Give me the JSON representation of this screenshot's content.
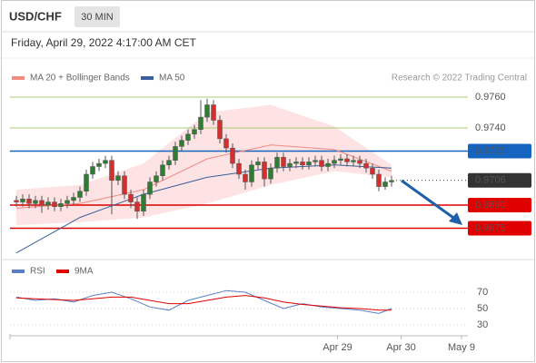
{
  "chart_data": [
    {
      "type": "candlestick",
      "title": "USD/CHF",
      "timeframe": "30 MIN",
      "subtitle": "Friday, April 29, 2022 4:17:00 AM CET",
      "source": "Research © 2022 Trading Central",
      "up_color": "#2e7d32",
      "down_color": "#d32f2f",
      "xlim": [
        -1,
        71
      ],
      "ylim": [
        0.9658,
        0.977
      ],
      "ohlc": [
        [
          0.9693,
          0.9696,
          0.9689,
          0.9692
        ],
        [
          0.9692,
          0.9697,
          0.9689,
          0.9694
        ],
        [
          0.9694,
          0.9697,
          0.9688,
          0.9691
        ],
        [
          0.9691,
          0.9696,
          0.9688,
          0.9693
        ],
        [
          0.9693,
          0.9696,
          0.9685,
          0.969
        ],
        [
          0.969,
          0.9695,
          0.9687,
          0.9692
        ],
        [
          0.9692,
          0.9695,
          0.9686,
          0.9689
        ],
        [
          0.9689,
          0.9694,
          0.9686,
          0.9691
        ],
        [
          0.9691,
          0.9696,
          0.9688,
          0.9693
        ],
        [
          0.9693,
          0.9698,
          0.969,
          0.9695
        ],
        [
          0.9695,
          0.9702,
          0.9692,
          0.9699
        ],
        [
          0.9699,
          0.9713,
          0.9696,
          0.971
        ],
        [
          0.971,
          0.9718,
          0.9707,
          0.9715
        ],
        [
          0.9715,
          0.972,
          0.9712,
          0.9717
        ],
        [
          0.9717,
          0.9722,
          0.9714,
          0.9719
        ],
        [
          0.9719,
          0.9722,
          0.9684,
          0.9706
        ],
        [
          0.9706,
          0.9712,
          0.9703,
          0.9709
        ],
        [
          0.9709,
          0.9712,
          0.9694,
          0.9697
        ],
        [
          0.9697,
          0.97,
          0.9688,
          0.9692
        ],
        [
          0.9692,
          0.9695,
          0.9681,
          0.9686
        ],
        [
          0.9686,
          0.97,
          0.9683,
          0.9697
        ],
        [
          0.9697,
          0.9708,
          0.9694,
          0.9705
        ],
        [
          0.9705,
          0.9712,
          0.9702,
          0.9709
        ],
        [
          0.9709,
          0.9719,
          0.9706,
          0.9716
        ],
        [
          0.9716,
          0.9722,
          0.9713,
          0.9719
        ],
        [
          0.9719,
          0.9731,
          0.9716,
          0.9728
        ],
        [
          0.9728,
          0.9735,
          0.9725,
          0.9732
        ],
        [
          0.9732,
          0.9739,
          0.9729,
          0.9736
        ],
        [
          0.9736,
          0.9742,
          0.9733,
          0.9739
        ],
        [
          0.9739,
          0.9758,
          0.9736,
          0.9747
        ],
        [
          0.9747,
          0.9759,
          0.9744,
          0.9755
        ],
        [
          0.9755,
          0.9758,
          0.9742,
          0.9745
        ],
        [
          0.9745,
          0.9748,
          0.973,
          0.9733
        ],
        [
          0.9733,
          0.9736,
          0.9724,
          0.9727
        ],
        [
          0.9727,
          0.973,
          0.9714,
          0.9717
        ],
        [
          0.9717,
          0.972,
          0.9707,
          0.971
        ],
        [
          0.971,
          0.9713,
          0.97,
          0.9705
        ],
        [
          0.9705,
          0.9719,
          0.9702,
          0.9716
        ],
        [
          0.9716,
          0.9721,
          0.9713,
          0.9718
        ],
        [
          0.9718,
          0.9721,
          0.9702,
          0.9707
        ],
        [
          0.9707,
          0.9717,
          0.9704,
          0.9714
        ],
        [
          0.9714,
          0.9724,
          0.9711,
          0.9721
        ],
        [
          0.9721,
          0.9724,
          0.9712,
          0.9715
        ],
        [
          0.9715,
          0.972,
          0.9712,
          0.9717
        ],
        [
          0.9717,
          0.9721,
          0.9714,
          0.9718
        ],
        [
          0.9718,
          0.9721,
          0.9713,
          0.9716
        ],
        [
          0.9716,
          0.9721,
          0.9713,
          0.9718
        ],
        [
          0.9718,
          0.9722,
          0.9715,
          0.9719
        ],
        [
          0.9719,
          0.9722,
          0.9712,
          0.9715
        ],
        [
          0.9715,
          0.972,
          0.9712,
          0.9717
        ],
        [
          0.9717,
          0.9722,
          0.9714,
          0.9719
        ],
        [
          0.9719,
          0.9723,
          0.9716,
          0.972
        ],
        [
          0.972,
          0.9723,
          0.9715,
          0.9718
        ],
        [
          0.9718,
          0.9722,
          0.9715,
          0.9719
        ],
        [
          0.9719,
          0.9722,
          0.9714,
          0.9717
        ],
        [
          0.9717,
          0.972,
          0.9711,
          0.9714
        ],
        [
          0.9714,
          0.9717,
          0.9707,
          0.971
        ],
        [
          0.971,
          0.9713,
          0.9699,
          0.9702
        ],
        [
          0.9702,
          0.9708,
          0.97,
          0.9705
        ],
        [
          0.9705,
          0.9709,
          0.9702,
          0.9706
        ]
      ],
      "series": [
        {
          "name": "MA 20 + Bollinger Bands",
          "color": "#f28b82",
          "band_color": "#fde3e3",
          "x": [
            0,
            10,
            20,
            30,
            40,
            50,
            59
          ],
          "values": [
            0.9688,
            0.9691,
            0.97,
            0.972,
            0.9729,
            0.9726,
            0.9712
          ],
          "upper": [
            0.97,
            0.9703,
            0.9717,
            0.975,
            0.9755,
            0.9741,
            0.9716
          ],
          "lower": [
            0.9677,
            0.9679,
            0.9682,
            0.9691,
            0.9703,
            0.9712,
            0.9708
          ]
        },
        {
          "name": "MA 50",
          "color": "#3a5f9a",
          "x": [
            0,
            10,
            20,
            30,
            40,
            50,
            59
          ],
          "values": [
            0.9659,
            0.9682,
            0.9697,
            0.9708,
            0.9714,
            0.9716,
            0.9714
          ]
        }
      ],
      "levels": [
        {
          "value": 0.976,
          "label": "0.9760",
          "color": "#8bc34a",
          "style": "text"
        },
        {
          "value": 0.974,
          "label": "0.9740",
          "color": "#8bc34a",
          "style": "text"
        },
        {
          "value": 0.9725,
          "label": "0.9725",
          "color": "#1565c0",
          "style": "badge"
        },
        {
          "value": 0.9706,
          "label": "0.9706",
          "color": "#333333",
          "style": "badge",
          "dotted": true
        },
        {
          "value": 0.969,
          "label": "0.9690",
          "color": "#e00000",
          "style": "badge"
        },
        {
          "value": 0.9675,
          "label": "0.9675",
          "color": "#e00000",
          "style": "badge"
        }
      ]
    },
    {
      "type": "line",
      "xlim": [
        -1,
        71
      ],
      "ylim": [
        15,
        90
      ],
      "yticks": [
        30,
        50,
        70
      ],
      "xticks": [
        {
          "value": 50.5,
          "label": "Apr 29"
        },
        {
          "value": 60.5,
          "label": "Apr 30"
        },
        {
          "value": 70,
          "label": "May 9"
        }
      ],
      "series": [
        {
          "name": "RSI",
          "color": "#5b7fc7",
          "x": [
            0,
            3,
            6,
            9,
            12,
            15,
            18,
            21,
            24,
            27,
            30,
            33,
            36,
            39,
            42,
            45,
            48,
            51,
            54,
            57,
            59
          ],
          "values": [
            64,
            60,
            62,
            58,
            66,
            70,
            62,
            52,
            48,
            60,
            66,
            72,
            70,
            60,
            50,
            56,
            52,
            50,
            48,
            44,
            50
          ]
        },
        {
          "name": "9MA",
          "color": "#e00000",
          "x": [
            0,
            3,
            6,
            9,
            12,
            15,
            18,
            21,
            24,
            27,
            30,
            33,
            36,
            39,
            42,
            45,
            48,
            51,
            54,
            57,
            59
          ],
          "values": [
            63,
            62,
            61,
            60,
            62,
            64,
            64,
            60,
            56,
            56,
            60,
            64,
            66,
            63,
            58,
            55,
            53,
            51,
            50,
            48,
            48
          ]
        }
      ]
    }
  ]
}
